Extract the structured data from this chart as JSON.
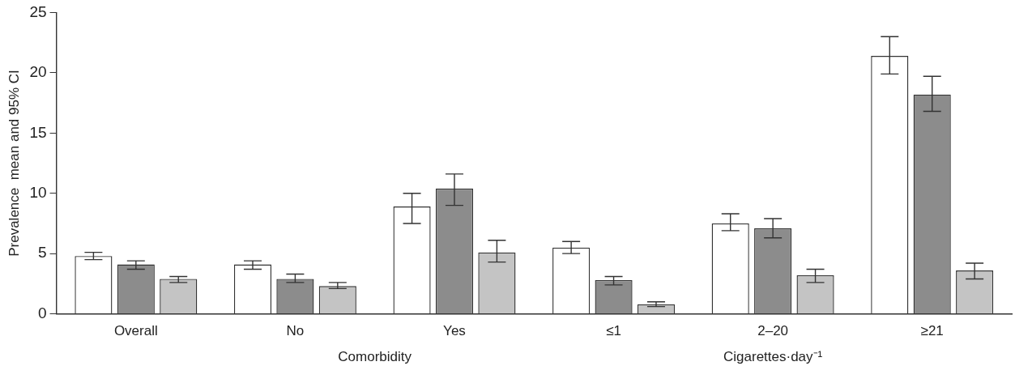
{
  "chart_data": {
    "type": "bar",
    "categories": [
      "Overall",
      "No",
      "Yes",
      "≤1",
      "2–20",
      "≥21"
    ],
    "ylabel": "Prevalence  mean and 95% CI",
    "ylim": [
      0,
      25
    ],
    "yticks": [
      0,
      5,
      10,
      15,
      20,
      25
    ],
    "grid": false,
    "legend": false,
    "annotations": [
      "Comorbidity",
      "Cigarettes·day⁻¹"
    ],
    "series": [
      {
        "color": "#ffffff",
        "values": [
          4.8,
          4.1,
          8.9,
          5.5,
          7.5,
          21.4
        ],
        "errors": [
          [
            4.5,
            5.1
          ],
          [
            3.7,
            4.4
          ],
          [
            7.5,
            10.0
          ],
          [
            5.0,
            6.0
          ],
          [
            6.9,
            8.3
          ],
          [
            19.9,
            23.0
          ]
        ]
      },
      {
        "color": "#8c8c8c",
        "values": [
          4.1,
          2.9,
          10.4,
          2.8,
          7.1,
          18.2
        ],
        "errors": [
          [
            3.7,
            4.4
          ],
          [
            2.6,
            3.3
          ],
          [
            9.0,
            11.6
          ],
          [
            2.4,
            3.1
          ],
          [
            6.3,
            7.9
          ],
          [
            16.8,
            19.7
          ]
        ]
      },
      {
        "color": "#c4c4c4",
        "values": [
          2.9,
          2.3,
          5.1,
          0.8,
          3.2,
          3.6
        ],
        "errors": [
          [
            2.6,
            3.1
          ],
          [
            2.1,
            2.6
          ],
          [
            4.3,
            6.1
          ],
          [
            0.6,
            1.0
          ],
          [
            2.6,
            3.7
          ],
          [
            2.9,
            4.2
          ]
        ]
      }
    ]
  }
}
